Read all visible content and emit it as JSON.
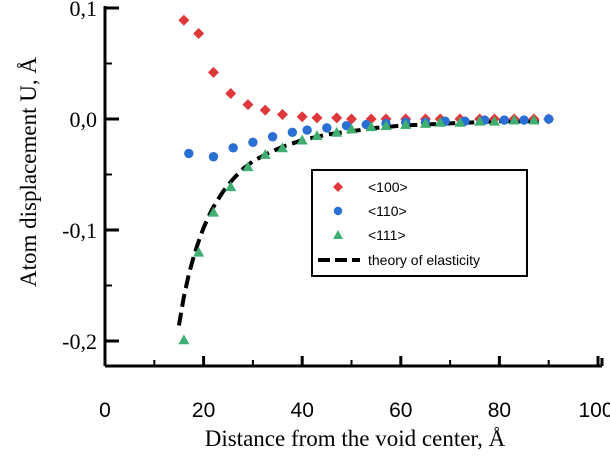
{
  "chart_data": {
    "type": "scatter",
    "title": "",
    "xlabel": "Distance from the void center, Å",
    "ylabel": "Atom displacement U, Å",
    "xlim": [
      0,
      100
    ],
    "ylim": [
      -0.22,
      0.1
    ],
    "x_ticks": [
      "0",
      "20",
      "40",
      "60",
      "80",
      "100"
    ],
    "y_ticks": [
      "0,1",
      "0,0",
      "-0,1",
      "-0,2"
    ],
    "y_tick_values": [
      0.1,
      0.0,
      -0.1,
      -0.2
    ],
    "x_tick_values": [
      0,
      20,
      40,
      60,
      80,
      100
    ],
    "grid": false,
    "legend_position": "center-right",
    "series": [
      {
        "name": "<100>",
        "marker": "diamond",
        "color": "#e0383a",
        "points": [
          [
            16,
            0.089
          ],
          [
            19,
            0.077
          ],
          [
            22,
            0.042
          ],
          [
            25.5,
            0.023
          ],
          [
            29,
            0.013
          ],
          [
            32.5,
            0.008
          ],
          [
            36,
            0.004
          ],
          [
            40,
            0.002
          ],
          [
            43,
            0.001
          ],
          [
            47,
            0.001
          ],
          [
            50,
            0.0
          ],
          [
            54,
            0.0
          ],
          [
            57,
            0.0
          ],
          [
            61,
            0.0
          ],
          [
            65,
            0.0
          ],
          [
            68,
            0.0
          ],
          [
            72,
            0.0
          ],
          [
            76,
            0.0
          ],
          [
            79,
            0.0
          ],
          [
            83,
            0.0
          ],
          [
            87,
            0.0
          ],
          [
            90,
            0.0
          ]
        ]
      },
      {
        "name": "<110>",
        "marker": "circle",
        "color": "#2a6fd3",
        "points": [
          [
            17,
            -0.031
          ],
          [
            22,
            -0.034
          ],
          [
            26,
            -0.026
          ],
          [
            30,
            -0.021
          ],
          [
            34,
            -0.016
          ],
          [
            38,
            -0.012
          ],
          [
            41,
            -0.01
          ],
          [
            45,
            -0.008
          ],
          [
            49,
            -0.006
          ],
          [
            53,
            -0.005
          ],
          [
            57,
            -0.004
          ],
          [
            61,
            -0.003
          ],
          [
            65,
            -0.003
          ],
          [
            69,
            -0.002
          ],
          [
            73,
            -0.002
          ],
          [
            77,
            -0.001
          ],
          [
            81,
            -0.001
          ],
          [
            85,
            -0.001
          ],
          [
            90,
            0.0
          ]
        ]
      },
      {
        "name": "<111>",
        "marker": "triangle",
        "color": "#3fae71",
        "points": [
          [
            16,
            -0.199
          ],
          [
            19,
            -0.12
          ],
          [
            22,
            -0.084
          ],
          [
            25.5,
            -0.061
          ],
          [
            29,
            -0.043
          ],
          [
            32.5,
            -0.032
          ],
          [
            36,
            -0.026
          ],
          [
            40,
            -0.019
          ],
          [
            43,
            -0.015
          ],
          [
            47,
            -0.012
          ],
          [
            50,
            -0.009
          ],
          [
            54,
            -0.007
          ],
          [
            57,
            -0.006
          ],
          [
            61,
            -0.005
          ],
          [
            65,
            -0.004
          ],
          [
            68,
            -0.003
          ],
          [
            72,
            -0.003
          ],
          [
            76,
            -0.002
          ],
          [
            79,
            -0.002
          ],
          [
            83,
            -0.001
          ],
          [
            87,
            -0.001
          ]
        ]
      },
      {
        "name": "theory of elasticity",
        "marker": "dashed-line",
        "color": "#000000",
        "points": [
          [
            15,
            -0.186
          ],
          [
            16,
            -0.16
          ],
          [
            17,
            -0.14
          ],
          [
            18,
            -0.124
          ],
          [
            19,
            -0.11
          ],
          [
            20,
            -0.098
          ],
          [
            21,
            -0.088
          ],
          [
            22,
            -0.079
          ],
          [
            24,
            -0.065
          ],
          [
            26,
            -0.054
          ],
          [
            28,
            -0.045
          ],
          [
            30,
            -0.038
          ],
          [
            33,
            -0.031
          ],
          [
            36,
            -0.025
          ],
          [
            40,
            -0.019
          ],
          [
            45,
            -0.014
          ],
          [
            50,
            -0.011
          ],
          [
            55,
            -0.008
          ],
          [
            60,
            -0.006
          ],
          [
            65,
            -0.005
          ],
          [
            70,
            -0.004
          ],
          [
            75,
            -0.003
          ],
          [
            80,
            -0.002
          ],
          [
            85,
            -0.002
          ],
          [
            88,
            -0.002
          ]
        ]
      }
    ]
  }
}
